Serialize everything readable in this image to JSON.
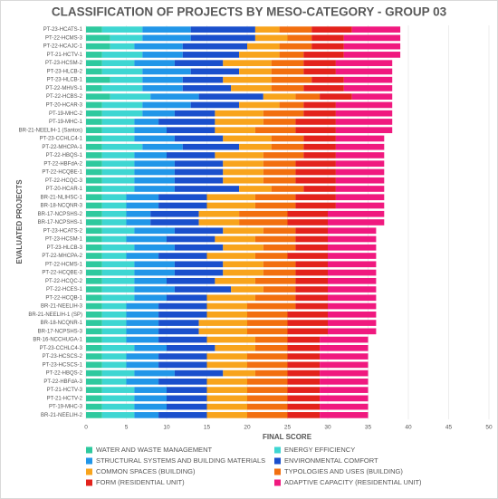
{
  "chart_data": {
    "type": "stacked_barh",
    "title": "CLASSIFICATION OF PROJECTS BY MESO-CATEGORY - GROUP 03",
    "xlabel": "FINAL SCORE",
    "ylabel": "EVALUATED PROJECTS",
    "categories": [
      "PT-23-HCATS-1",
      "PT-22-HCMS-3",
      "PT-22-HCAJC-1",
      "PT-21-HCTV-1",
      "PT-23-HCSM-2",
      "PT-23-HLCB-2",
      "PT-23-HLCB-1",
      "PT-22-MHVS-1",
      "PT-22-HCBS-2",
      "PT-20-HCAR-3",
      "PT-19-MHC-2",
      "PT-19-MHC-1",
      "BR-21-NEELIH-1 (Santos)",
      "PT-23-CCHLC4-1",
      "PT-22-MHCPA-1",
      "PT-22-HBQS-1",
      "PT-22-HBFdA-2",
      "PT-22-HCQBE-1",
      "PT-22-HCQC-3",
      "PT-20-HCAR-1",
      "BR-21-NLIHSC-1",
      "BR-18-NCQNR-3",
      "BR-17-NCPSHS-2",
      "BR-17-NCPSHS-1",
      "PT-23-HCATS-2",
      "PT-23-HCSM-1",
      "PT-23-HLCB-3",
      "PT-22-MHCPA-2",
      "PT-22-HCMS-1",
      "PT-22-HCQBE-3",
      "PT-22-HCQC-2",
      "PT-22-HCES-1",
      "PT-22-HCQB-1",
      "BR-21-NEELIH-3",
      "BR-21-NEELIH-1 (SP)",
      "BR-18-NCQNR-1",
      "BR-17-NCPSHS-3",
      "BR-16-NCCHUGA-1",
      "PT-23-CCHLC4-3",
      "PT-23-HCSCS-2",
      "PT-23-HCSCS-1",
      "PT-22-HBQS-2",
      "PT-22-HBFdA-3",
      "PT-21-HCTV-3",
      "PT-21-HCTV-2",
      "PT-19-MHC-3",
      "BR-21-NEELIH-2"
    ],
    "series": [
      {
        "name": "WATER AND WASTE MANAGEMENT",
        "color": "#2ec99e",
        "values": [
          2,
          3,
          3,
          2,
          2,
          2,
          3,
          2,
          3,
          2,
          2,
          2,
          2,
          2,
          2,
          2,
          2,
          2,
          2,
          2,
          2,
          2,
          2,
          2,
          2,
          2,
          2,
          2,
          2,
          2,
          2,
          2,
          2,
          2,
          2,
          2,
          2,
          2,
          2,
          2,
          2,
          2,
          2,
          2,
          2,
          2,
          2
        ]
      },
      {
        "name": "ENERGY EFFICIENCY",
        "color": "#3ed6d2",
        "values": [
          5,
          4,
          3,
          5,
          4,
          5,
          4,
          5,
          5,
          5,
          5,
          4,
          4,
          4,
          5,
          4,
          4,
          4,
          4,
          4,
          3,
          3,
          3,
          3,
          4,
          3,
          4,
          3,
          4,
          4,
          4,
          4,
          4,
          3,
          3,
          3,
          3,
          3,
          4,
          3,
          3,
          4,
          3,
          4,
          4,
          4,
          4
        ]
      },
      {
        "name": "STRUCTURAL SYSTEMS AND BUILDING MATERIALS",
        "color": "#2196e8",
        "values": [
          6,
          6,
          6,
          5,
          5,
          6,
          5,
          5,
          6,
          6,
          4,
          3,
          4,
          5,
          5,
          4,
          5,
          5,
          5,
          5,
          4,
          4,
          3,
          3,
          5,
          5,
          5,
          4,
          5,
          5,
          4,
          5,
          4,
          4,
          4,
          4,
          4,
          4,
          4,
          4,
          4,
          5,
          4,
          4,
          4,
          4,
          3
        ]
      },
      {
        "name": "ENVIRONMENTAL COMFORT",
        "color": "#1a4fcc",
        "values": [
          8,
          8,
          8,
          7,
          6,
          6,
          5,
          6,
          8,
          6,
          5,
          7,
          6,
          6,
          7,
          6,
          6,
          6,
          6,
          8,
          6,
          6,
          6,
          6,
          6,
          6,
          6,
          6,
          6,
          6,
          6,
          7,
          5,
          6,
          6,
          5,
          5,
          6,
          6,
          6,
          6,
          6,
          6,
          5,
          5,
          5,
          6
        ]
      },
      {
        "name": "COMMON SPACES (BUILDING)",
        "color": "#f8a41c",
        "values": [
          3,
          4,
          4,
          5,
          6,
          4,
          6,
          5,
          4,
          5,
          6,
          6,
          5,
          6,
          4,
          6,
          5,
          5,
          5,
          4,
          6,
          6,
          5,
          5,
          5,
          5,
          5,
          6,
          5,
          5,
          5,
          4,
          6,
          5,
          5,
          6,
          6,
          6,
          5,
          5,
          5,
          4,
          5,
          5,
          5,
          5,
          5
        ]
      },
      {
        "name": "TYPOLOGIES AND USES (BUILDING)",
        "color": "#f26f0f",
        "values": [
          4,
          3,
          4,
          3,
          4,
          4,
          5,
          4,
          3,
          3,
          5,
          4,
          5,
          4,
          4,
          5,
          4,
          4,
          4,
          4,
          5,
          5,
          6,
          6,
          4,
          5,
          4,
          4,
          4,
          4,
          5,
          4,
          5,
          6,
          5,
          5,
          5,
          4,
          4,
          5,
          5,
          4,
          5,
          5,
          5,
          5,
          5
        ]
      },
      {
        "name": "FORM (RESIDENTIAL UNIT)",
        "color": "#e3221c",
        "values": [
          5,
          4,
          4,
          5,
          4,
          4,
          4,
          5,
          4,
          4,
          4,
          5,
          5,
          4,
          4,
          4,
          5,
          5,
          5,
          4,
          5,
          5,
          5,
          5,
          4,
          4,
          4,
          5,
          4,
          4,
          4,
          4,
          4,
          4,
          5,
          5,
          5,
          4,
          4,
          4,
          4,
          4,
          4,
          4,
          4,
          4,
          4
        ]
      },
      {
        "name": "ADAPTIVE CAPACITY (RESIDENTIAL UNIT)",
        "color": "#f0197f",
        "values": [
          6,
          7,
          7,
          7,
          7,
          7,
          6,
          6,
          5,
          7,
          7,
          7,
          7,
          6,
          6,
          6,
          6,
          6,
          6,
          6,
          6,
          6,
          7,
          7,
          6,
          6,
          6,
          6,
          6,
          6,
          6,
          6,
          6,
          6,
          6,
          6,
          6,
          6,
          6,
          6,
          6,
          6,
          6,
          6,
          6,
          6,
          6
        ]
      }
    ],
    "xlim": [
      0,
      50
    ],
    "xticks": [
      0,
      5,
      10,
      15,
      20,
      25,
      30,
      35,
      40,
      45,
      50
    ],
    "grid": true,
    "legend": "bottom"
  }
}
